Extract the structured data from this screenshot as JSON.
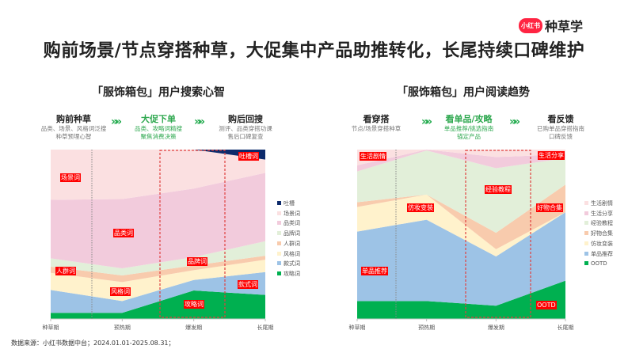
{
  "logo": {
    "badge": "小红书",
    "name": "种草学"
  },
  "title": "购前场景/节点穿搭种草，大促集中产品助推转化，长尾持续口碑维护",
  "left": {
    "subtitle": "「服饰箱包」用户搜索心智",
    "stages": [
      {
        "title": "购前种草",
        "desc": [
          "品类、场景、风格词泛搜",
          "种草预埋心智"
        ]
      },
      {
        "title": "大促下单",
        "desc": [
          "品类、攻略词精搜",
          "聚焦消费决策"
        ]
      },
      {
        "title": "购后回搜",
        "desc": [
          "测评、品类穿搭功课",
          "售后口碑复查"
        ]
      }
    ]
  },
  "right": {
    "subtitle": "「服饰箱包」用户阅读趋势",
    "stages": [
      {
        "title": "看穿搭",
        "desc": [
          "节点/场景穿搭种草"
        ]
      },
      {
        "title": "看单品/攻略",
        "desc": [
          "单品推荐/挑选指南",
          "锚定产品"
        ]
      },
      {
        "title": "看反馈",
        "desc": [
          "已购单品穿搭指南",
          "口碑反馈"
        ]
      }
    ]
  },
  "arrow_glyph": "»»",
  "chart_data": [
    {
      "type": "area",
      "stacked": "percent",
      "categories": [
        "种草期",
        "预热期",
        "爆发期",
        "长尾期"
      ],
      "ylim": [
        0,
        100
      ],
      "legend": "right",
      "highlight": "爆发期",
      "series": [
        {
          "name": "攻略词",
          "label": "攻略词",
          "color": "#00b050",
          "values": [
            3.6,
            3.6,
            16.8,
            14.2
          ]
        },
        {
          "name": "款式词",
          "label": "款式词",
          "color": "#9dc3e6",
          "values": [
            13.5,
            7.0,
            6.2,
            13.5
          ]
        },
        {
          "name": "风格词",
          "label": "风格词",
          "color": "#fff2cc",
          "values": [
            10.1,
            11.2,
            5.8,
            7.3
          ]
        },
        {
          "name": "人群词",
          "label": "人群词",
          "color": "#f8cbad",
          "values": [
            3.7,
            3.9,
            2.8,
            2.3
          ]
        },
        {
          "name": "品牌词",
          "label": "品牌词",
          "color": "#e2efd9",
          "values": [
            4.9,
            4.2,
            4.9,
            8.6
          ]
        },
        {
          "name": "品类词",
          "label": "品类词",
          "color": "#f2cbdc",
          "values": [
            34.5,
            40.9,
            40.5,
            40.4
          ]
        },
        {
          "name": "场景词",
          "label": "场景词",
          "color": "#fbe0e1",
          "values": [
            29.7,
            29.2,
            23.0,
            7.8
          ]
        },
        {
          "name": "吐槽",
          "label": "吐槽词",
          "color": "#0d2a6b",
          "values": [
            0,
            0,
            0,
            5.9
          ]
        }
      ]
    },
    {
      "type": "area",
      "stacked": "percent",
      "categories": [
        "种草期",
        "预热期",
        "爆发期",
        "长尾期"
      ],
      "ylim": [
        0,
        100
      ],
      "legend": "right",
      "highlight": "爆发期",
      "series": [
        {
          "name": "OOTD",
          "label": "OOTD",
          "color": "#00b050",
          "values": [
            10.6,
            10.6,
            7.8,
            22.6
          ]
        },
        {
          "name": "单品推荐",
          "label": "单品推荐",
          "color": "#9dc3e6",
          "values": [
            41.0,
            48.0,
            29.1,
            40.4
          ]
        },
        {
          "name": "仿妆变装",
          "label": "仿妆变装",
          "color": "#fff2cc",
          "values": [
            14.5,
            14.8,
            4.3,
            0
          ]
        },
        {
          "name": "好物合集",
          "label": "好物合集",
          "color": "#f8cbad",
          "values": [
            2.8,
            0,
            9.7,
            16.3
          ]
        },
        {
          "name": "经验教程",
          "label": "经验教程",
          "color": "#e2efd9",
          "values": [
            18.2,
            26.1,
            38.1,
            15.6
          ]
        },
        {
          "name": "生活分享",
          "label": "生活分享",
          "color": "#f2cbdc",
          "values": [
            3.6,
            0.5,
            6.6,
            2.3
          ]
        },
        {
          "name": "生活剧情",
          "label": "生活剧情",
          "color": "#fbe0e1",
          "values": [
            9.3,
            0,
            4.4,
            2.8
          ]
        }
      ]
    }
  ],
  "footer": "数据来源：小红书数据中台；2024.01.01-2025.08.31；"
}
